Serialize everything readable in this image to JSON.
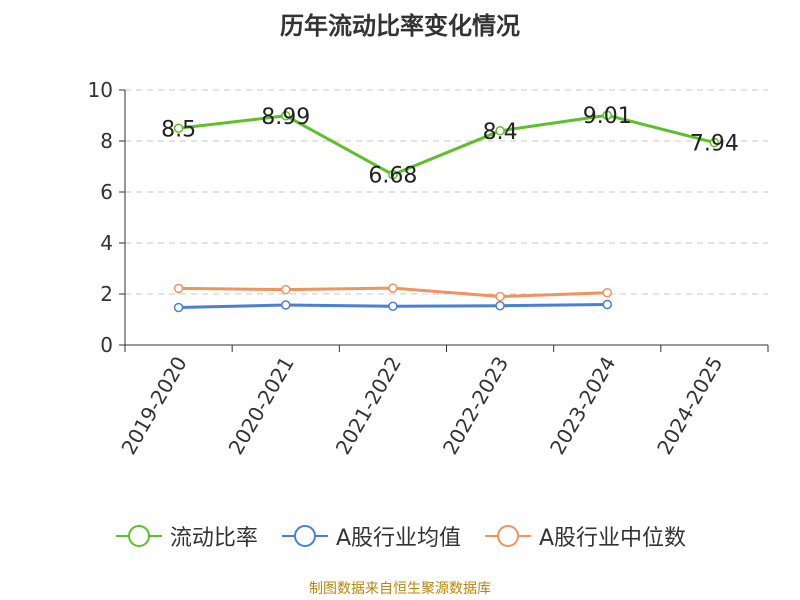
{
  "title": "历年流动比率变化情况",
  "source": "制图数据来自恒生聚源数据库",
  "chart_data": {
    "type": "line",
    "categories": [
      "2019-2020",
      "2020-2021",
      "2021-2022",
      "2022-2023",
      "2023-2024",
      "2024-2025"
    ],
    "ylim": [
      0,
      10
    ],
    "yticks": [
      0,
      2,
      4,
      6,
      8,
      10
    ],
    "grid": true,
    "legend_position": "bottom",
    "series": [
      {
        "name": "流动比率",
        "color": "#5cc02a",
        "values": [
          8.5,
          8.99,
          6.68,
          8.4,
          9.01,
          7.94
        ],
        "labels": [
          "8.5",
          "8.99",
          "6.68",
          "8.4",
          "9.01",
          "7.94"
        ]
      },
      {
        "name": "A股行业均值",
        "color": "#4a7fd8",
        "values": [
          1.47,
          1.57,
          1.52,
          1.54,
          1.59,
          null
        ]
      },
      {
        "name": "A股行业中位数",
        "color": "#f0935e",
        "values": [
          2.22,
          2.17,
          2.23,
          1.9,
          2.05,
          null
        ]
      }
    ]
  }
}
